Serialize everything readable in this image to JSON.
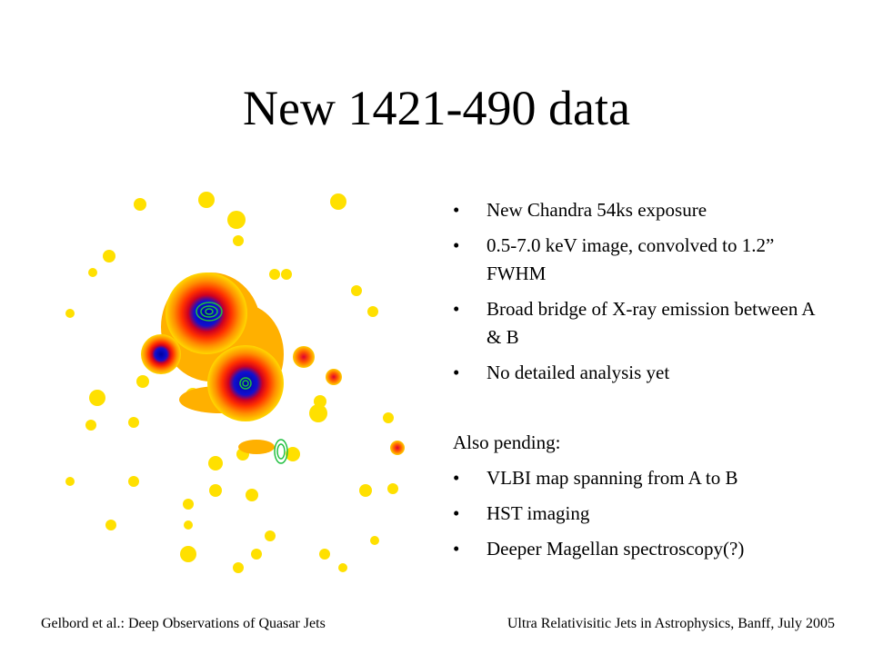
{
  "title": "New 1421-490 data",
  "bullets": [
    "New Chandra 54ks exposure",
    "0.5-7.0 keV image, convolved to 1.2” FWHM",
    "Broad bridge of X-ray emission between A & B",
    "No detailed analysis yet"
  ],
  "pending": {
    "heading": "Also pending:",
    "items": [
      "VLBI map spanning from A to B",
      "HST imaging",
      "Deeper Magellan spectroscopy(?)"
    ]
  },
  "footer": {
    "left": "Gelbord et al.: Deep Observations of Quasar Jets",
    "right": "Ultra Relativisitic Jets in Astrophysics, Banff, July 2005"
  }
}
